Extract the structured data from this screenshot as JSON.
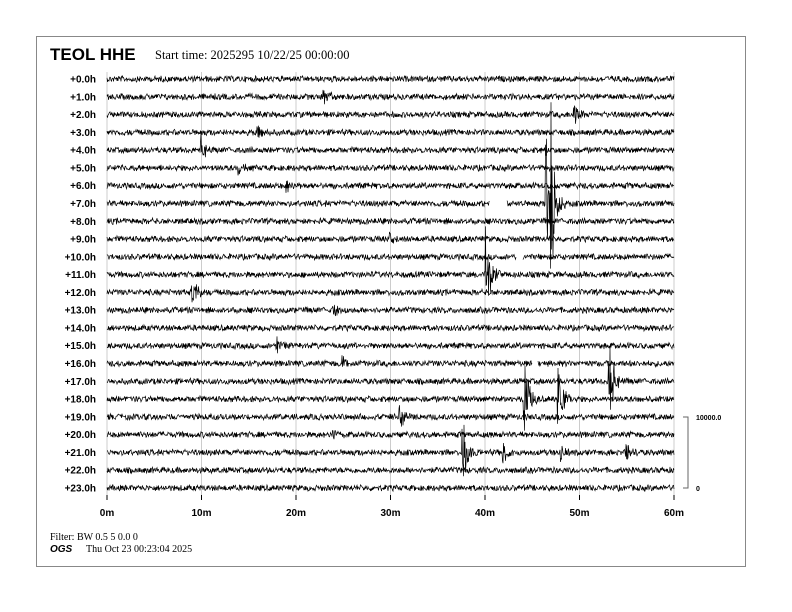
{
  "header": {
    "station": "TEOL HHE",
    "start_time": "Start time: 2025295 10/22/25 00:00:00"
  },
  "footer": {
    "filter": "Filter: BW 0.5 5 0.0 0",
    "agency": "OGS",
    "printed": "Thu Oct 23 00:23:04 2025"
  },
  "chart_data": {
    "type": "line",
    "title": "TEOL HHE",
    "row_labels": [
      "+0.0h",
      "+1.0h",
      "+2.0h",
      "+3.0h",
      "+4.0h",
      "+5.0h",
      "+6.0h",
      "+7.0h",
      "+8.0h",
      "+9.0h",
      "+10.0h",
      "+11.0h",
      "+12.0h",
      "+13.0h",
      "+14.0h",
      "+15.0h",
      "+16.0h",
      "+17.0h",
      "+18.0h",
      "+19.0h",
      "+20.0h",
      "+21.0h",
      "+22.0h",
      "+23.0h"
    ],
    "x_ticks": [
      "0m",
      "10m",
      "20m",
      "30m",
      "40m",
      "50m",
      "60m"
    ],
    "xlim": [
      0,
      60
    ],
    "grid": true,
    "scale_labels": [
      "10000.0",
      "0"
    ],
    "trace_color": "#000000",
    "grid_color": "#cccccc",
    "events": [
      {
        "hour": 1,
        "minute": 23,
        "amp": 0.5
      },
      {
        "hour": 2,
        "minute": 49.5,
        "amp": 0.5
      },
      {
        "hour": 3,
        "minute": 16,
        "amp": 0.3
      },
      {
        "hour": 4,
        "minute": 10,
        "amp": 0.9
      },
      {
        "hour": 5,
        "minute": 14,
        "amp": 0.3
      },
      {
        "hour": 6,
        "minute": 19,
        "amp": 0.6
      },
      {
        "hour": 9,
        "minute": 30,
        "amp": 0.3
      },
      {
        "hour": 11,
        "minute": 40.2,
        "amp": 3.2
      },
      {
        "hour": 13,
        "minute": 24,
        "amp": 0.4
      },
      {
        "hour": 15,
        "minute": 18,
        "amp": 0.4
      },
      {
        "hour": 16,
        "minute": 25,
        "amp": 0.4
      },
      {
        "hour": 17,
        "minute": 53.2,
        "amp": 3
      },
      {
        "hour": 19,
        "minute": 31,
        "amp": 0.8
      },
      {
        "hour": 20,
        "minute": 24,
        "amp": 0.3
      },
      {
        "hour": 21,
        "minute": 37.7,
        "amp": 2
      },
      {
        "hour": 21,
        "minute": 42,
        "amp": 0.6
      },
      {
        "hour": 21,
        "minute": 48,
        "amp": 0.6
      },
      {
        "hour": 21,
        "minute": 55,
        "amp": 0.6
      },
      {
        "hour": 7,
        "minute": 46.5,
        "amp": 6
      },
      {
        "hour": 7,
        "minute": 47,
        "amp": 6
      },
      {
        "hour": 18,
        "minute": 44.2,
        "amp": 3
      },
      {
        "hour": 18,
        "minute": 47.8,
        "amp": 2.5
      },
      {
        "hour": 12,
        "minute": 9,
        "amp": 1.5
      }
    ],
    "gaps": [
      {
        "hour": 7,
        "from": 40.5,
        "to": 42.3
      },
      {
        "hour": 10,
        "from": 43.3,
        "to": 44
      },
      {
        "hour": 16,
        "from": 45,
        "to": 45.6
      }
    ]
  }
}
